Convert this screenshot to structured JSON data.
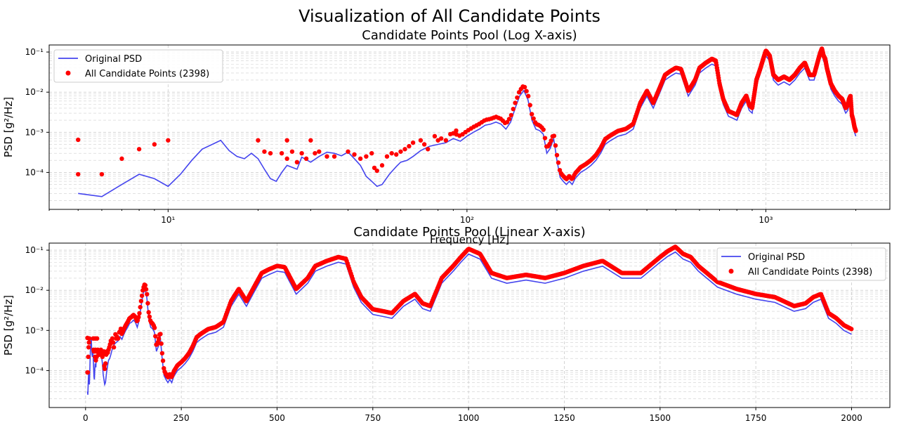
{
  "figure": {
    "suptitle": "Visualization of All Candidate Points"
  },
  "chart_data": [
    {
      "type": "line+scatter",
      "title": "Candidate Points Pool (Log X-axis)",
      "xlabel": "Frequency [Hz]",
      "ylabel": "PSD [g²/Hz]",
      "xscale": "log",
      "yscale": "log",
      "xlim": [
        4,
        2600
      ],
      "ylim": [
        1.2e-05,
        0.15
      ],
      "xticks": [
        10,
        100,
        1000
      ],
      "xtick_labels": [
        "10¹",
        "10²",
        "10³"
      ],
      "yticks": [
        0.0001,
        0.001,
        0.01,
        0.1
      ],
      "ytick_labels": [
        "10⁻⁴",
        "10⁻³",
        "10⁻²",
        "10⁻¹"
      ],
      "grid": true,
      "legend_location": "upper-left",
      "legend": [
        {
          "label": "Original PSD",
          "kind": "line",
          "color": "#4444ee"
        },
        {
          "label": "All Candidate Points (2398)",
          "kind": "marker",
          "color": "#ff0000"
        }
      ]
    },
    {
      "type": "line+scatter",
      "title": "Candidate Points Pool (Linear X-axis)",
      "xlabel": "Frequency [Hz]",
      "ylabel": "PSD [g²/Hz]",
      "xscale": "linear",
      "yscale": "log",
      "xlim": [
        -95,
        2100
      ],
      "ylim": [
        1.2e-05,
        0.15
      ],
      "xticks": [
        0,
        250,
        500,
        750,
        1000,
        1250,
        1500,
        1750,
        2000
      ],
      "xtick_labels": [
        "0",
        "250",
        "500",
        "750",
        "1000",
        "1250",
        "1500",
        "1750",
        "2000"
      ],
      "yticks": [
        0.0001,
        0.001,
        0.01,
        0.1
      ],
      "ytick_labels": [
        "10⁻⁴",
        "10⁻³",
        "10⁻²",
        "10⁻¹"
      ],
      "grid": true,
      "legend_location": "upper-right",
      "legend": [
        {
          "label": "Original PSD",
          "kind": "line",
          "color": "#4444ee"
        },
        {
          "label": "All Candidate Points (2398)",
          "kind": "marker",
          "color": "#ff0000"
        }
      ]
    }
  ],
  "series": {
    "original_psd": {
      "name": "Original PSD",
      "color": "#4444ee",
      "x": [
        5,
        6,
        7,
        8,
        9,
        10,
        11,
        12,
        13,
        15,
        16,
        17,
        18,
        19,
        20,
        21,
        22,
        23,
        24,
        25,
        27,
        28,
        30,
        32,
        34,
        36,
        38,
        40,
        42,
        44,
        46,
        48,
        50,
        52,
        55,
        58,
        60,
        63,
        66,
        70,
        75,
        80,
        85,
        90,
        95,
        100,
        105,
        110,
        115,
        120,
        125,
        130,
        135,
        140,
        145,
        150,
        155,
        160,
        165,
        170,
        175,
        180,
        185,
        190,
        195,
        200,
        205,
        210,
        215,
        220,
        225,
        230,
        240,
        250,
        260,
        270,
        280,
        290,
        300,
        320,
        340,
        360,
        380,
        400,
        420,
        440,
        460,
        480,
        500,
        520,
        550,
        580,
        600,
        630,
        660,
        680,
        700,
        720,
        750,
        780,
        800,
        830,
        860,
        880,
        900,
        930,
        960,
        980,
        1000,
        1030,
        1060,
        1100,
        1150,
        1200,
        1250,
        1300,
        1350,
        1400,
        1450,
        1500,
        1520,
        1540,
        1560,
        1580,
        1600,
        1650,
        1700,
        1750,
        1800,
        1850,
        1880,
        1900,
        1920,
        1940,
        1960,
        1980,
        2000
      ],
      "y": [
        3e-05,
        2.5e-05,
        5e-05,
        9e-05,
        7e-05,
        4.5e-05,
        9e-05,
        0.0002,
        0.00038,
        0.00063,
        0.00035,
        0.00025,
        0.00022,
        0.0003,
        0.00022,
        0.00012,
        7e-05,
        6e-05,
        0.0001,
        0.00015,
        0.00012,
        0.00024,
        0.00018,
        0.00025,
        0.00032,
        0.0003,
        0.00026,
        0.00032,
        0.00022,
        0.00015,
        8e-05,
        6e-05,
        4.5e-05,
        5e-05,
        9e-05,
        0.00014,
        0.00018,
        0.0002,
        0.00025,
        0.00035,
        0.00045,
        0.0005,
        0.00055,
        0.0007,
        0.0006,
        0.0008,
        0.001,
        0.0012,
        0.0015,
        0.0016,
        0.0018,
        0.0016,
        0.0012,
        0.0018,
        0.004,
        0.008,
        0.011,
        0.0065,
        0.002,
        0.0012,
        0.0011,
        0.0009,
        0.0003,
        0.0004,
        0.0007,
        0.0002,
        7.5e-05,
        6e-05,
        5e-05,
        6e-05,
        5e-05,
        7e-05,
        0.0001,
        0.00012,
        0.00015,
        0.0002,
        0.0003,
        0.0005,
        0.0006,
        0.0008,
        0.0009,
        0.0012,
        0.004,
        0.008,
        0.004,
        0.009,
        0.02,
        0.025,
        0.03,
        0.028,
        0.008,
        0.015,
        0.03,
        0.04,
        0.05,
        0.045,
        0.012,
        0.005,
        0.0025,
        0.0022,
        0.002,
        0.004,
        0.006,
        0.0035,
        0.003,
        0.015,
        0.03,
        0.05,
        0.08,
        0.06,
        0.02,
        0.015,
        0.018,
        0.015,
        0.02,
        0.03,
        0.04,
        0.02,
        0.02,
        0.05,
        0.07,
        0.09,
        0.06,
        0.05,
        0.03,
        0.012,
        0.008,
        0.006,
        0.005,
        0.003,
        0.0035,
        0.005,
        0.006,
        0.002,
        0.0015,
        0.001,
        0.0008
      ]
    },
    "candidate_points": {
      "name": "All Candidate Points (2398)",
      "color": "#ff0000",
      "sparse_low_freq": [
        [
          5,
          0.00065
        ],
        [
          5,
          9e-05
        ],
        [
          6,
          9e-05
        ],
        [
          7,
          0.00022
        ],
        [
          8,
          0.00038
        ],
        [
          9,
          0.0005
        ],
        [
          10,
          0.00063
        ],
        [
          20,
          0.00063
        ],
        [
          21,
          0.00033
        ],
        [
          22,
          0.0003
        ],
        [
          24,
          0.0003
        ],
        [
          25,
          0.00022
        ],
        [
          25,
          0.00063
        ],
        [
          26,
          0.00033
        ],
        [
          27,
          0.00018
        ],
        [
          28,
          0.0003
        ],
        [
          29,
          0.00022
        ],
        [
          30,
          0.00063
        ],
        [
          31,
          0.0003
        ],
        [
          32,
          0.00033
        ],
        [
          34,
          0.00025
        ],
        [
          36,
          0.00025
        ],
        [
          40,
          0.00033
        ],
        [
          42,
          0.00028
        ],
        [
          44,
          0.00022
        ],
        [
          46,
          0.00025
        ],
        [
          48,
          0.0003
        ],
        [
          49,
          0.00013
        ],
        [
          50,
          0.00011
        ],
        [
          52,
          0.00015
        ],
        [
          54,
          0.00025
        ],
        [
          56,
          0.0003
        ],
        [
          58,
          0.00028
        ],
        [
          60,
          0.00033
        ],
        [
          62,
          0.00038
        ],
        [
          64,
          0.00045
        ],
        [
          66,
          0.00055
        ],
        [
          70,
          0.00063
        ],
        [
          72,
          0.0005
        ],
        [
          74,
          0.00038
        ],
        [
          78,
          0.0008
        ],
        [
          80,
          0.00063
        ],
        [
          82,
          0.0007
        ],
        [
          85,
          0.00063
        ],
        [
          88,
          0.0009
        ],
        [
          92,
          0.0011
        ]
      ],
      "dense_offset": 1.35
    }
  }
}
